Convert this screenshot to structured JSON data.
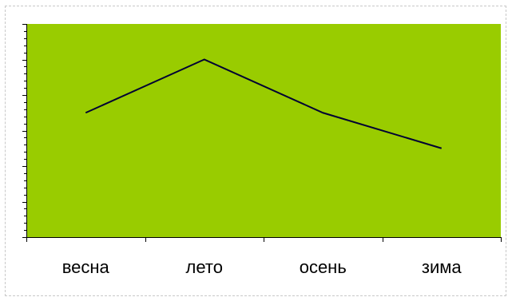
{
  "chart_data": {
    "type": "line",
    "title": "",
    "xlabel": "",
    "ylabel": "",
    "categories": [
      "весна",
      "лето",
      "осень",
      "зима"
    ],
    "series": [
      {
        "values": [
          3.5,
          5,
          3.5,
          2.5
        ]
      }
    ],
    "ylim": [
      0,
      6
    ],
    "y_minor_ticks_per_major": 4,
    "grid": false,
    "legend": "none",
    "plot_background": "#99cc00",
    "line_color": "#000033"
  }
}
